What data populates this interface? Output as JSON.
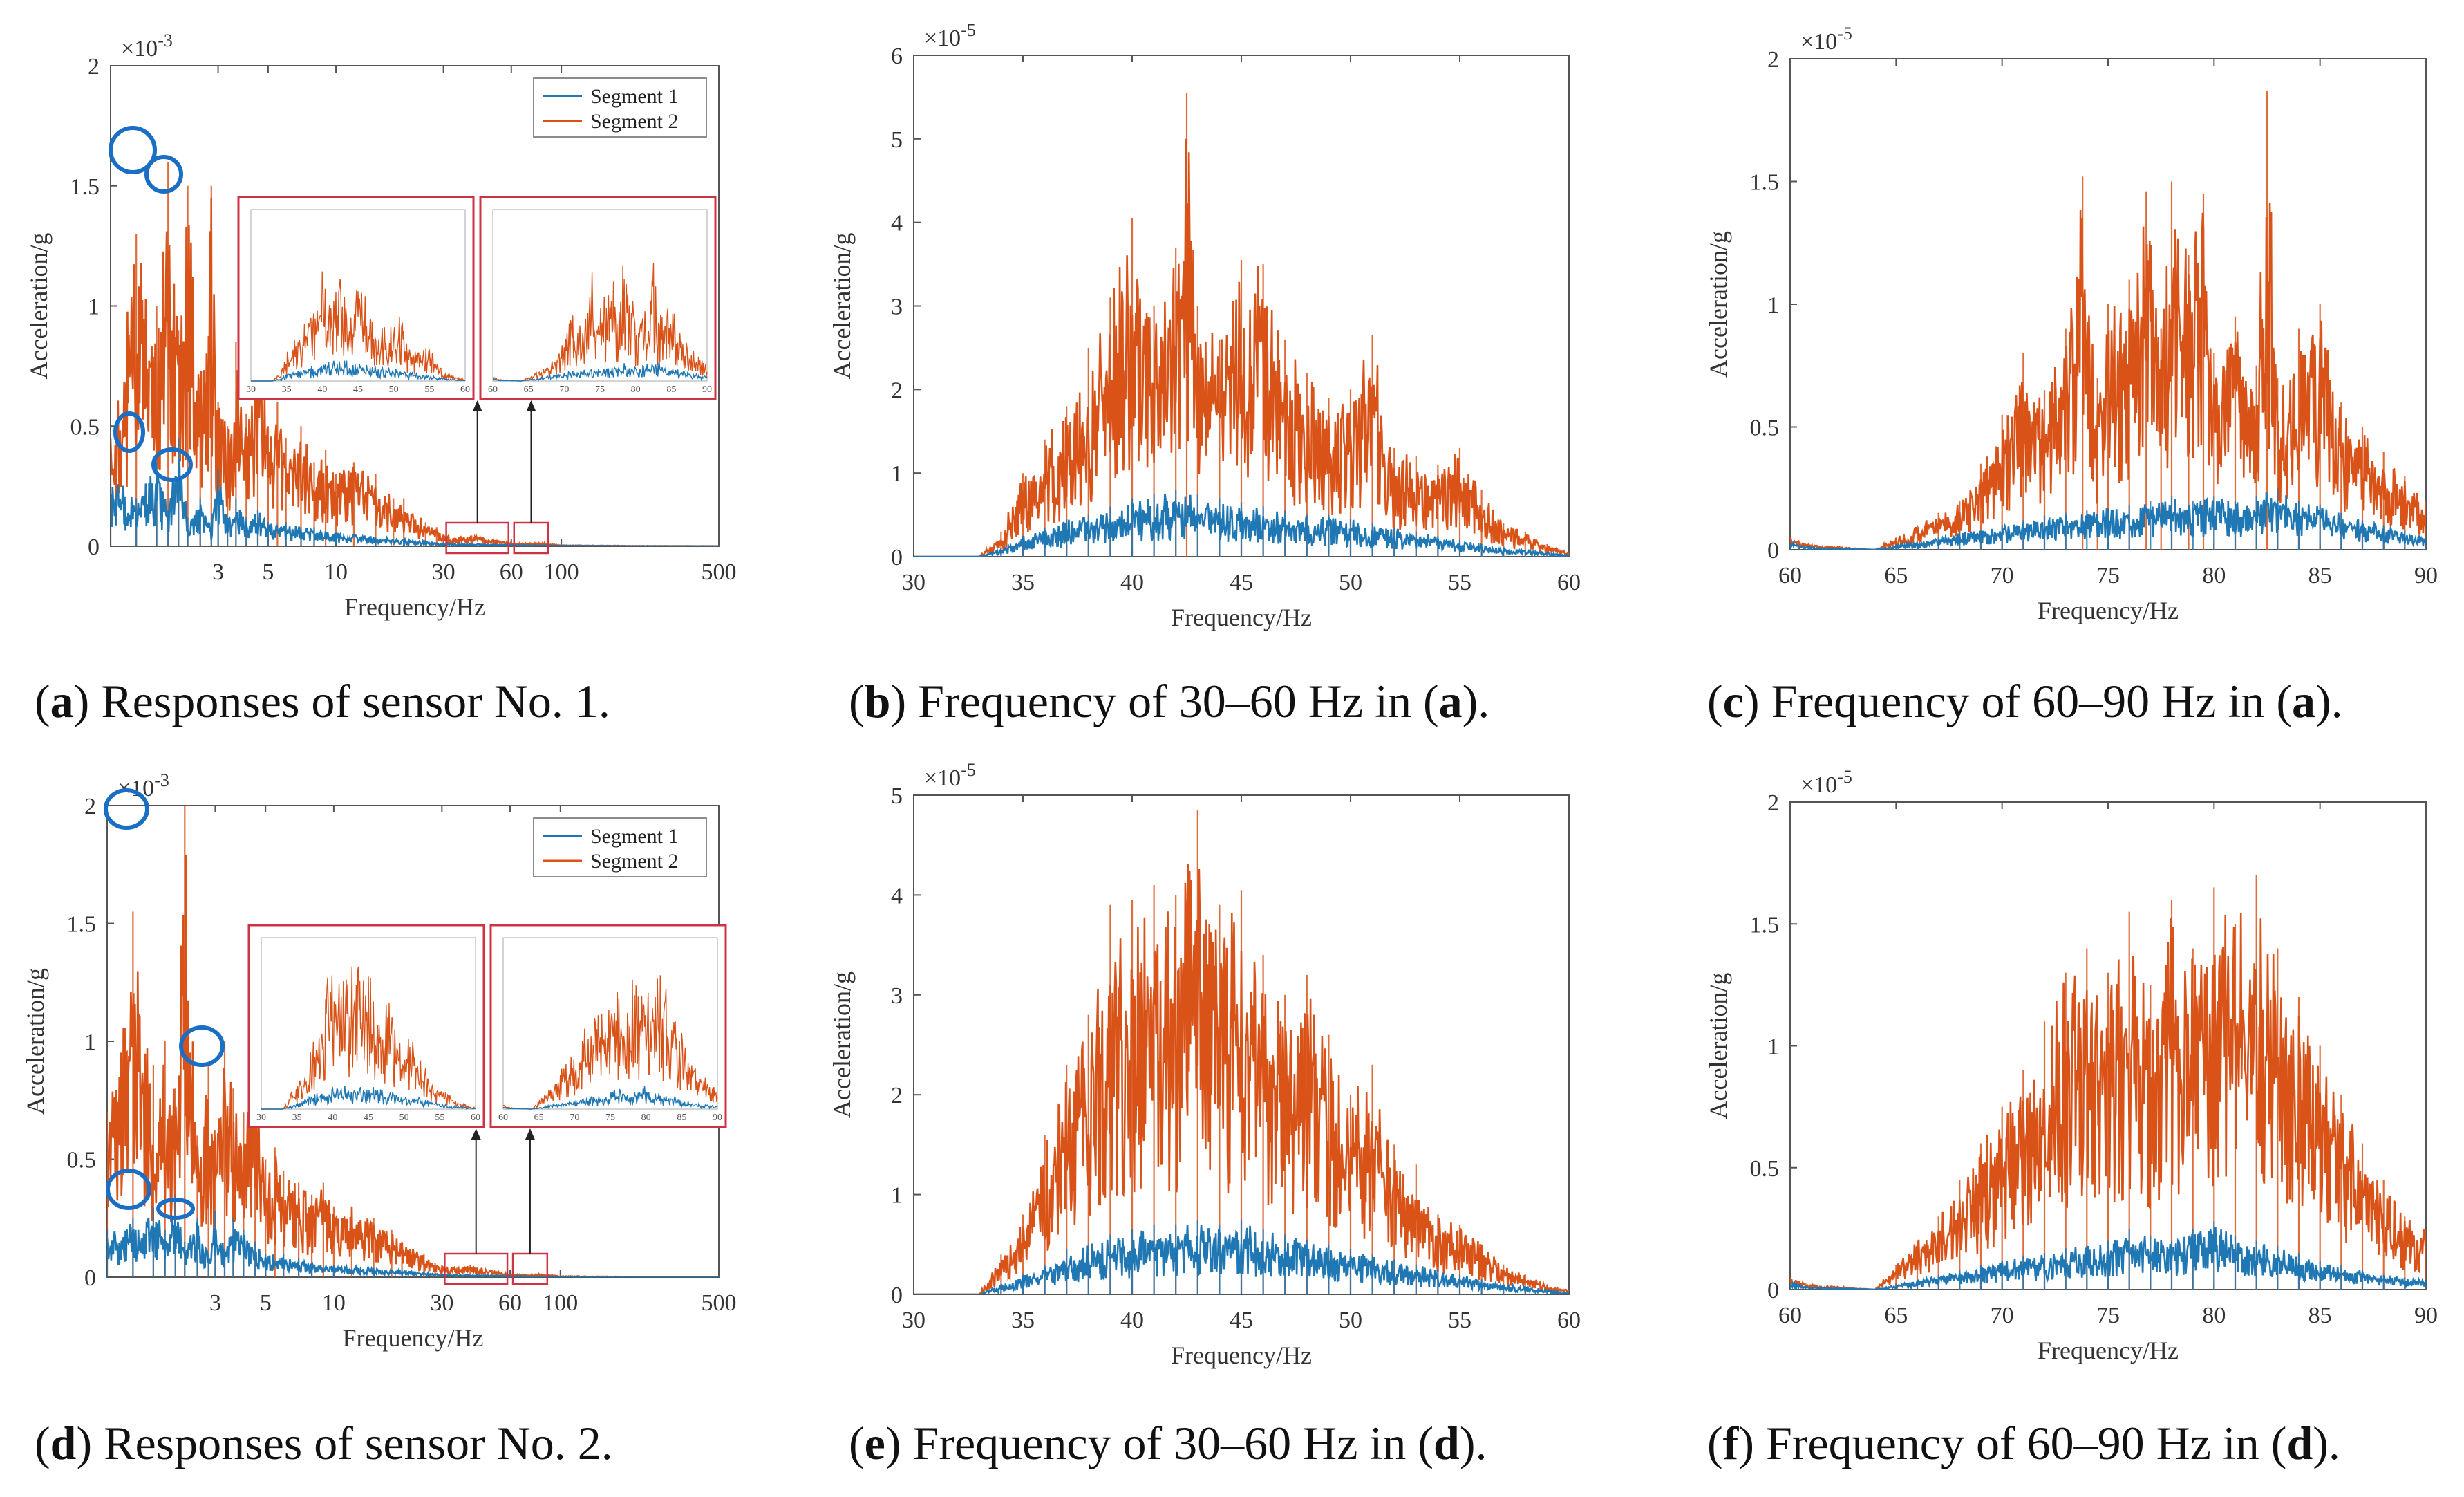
{
  "colors": {
    "segment1": "#1f77b4",
    "segment2": "#d95319",
    "inset_frame": "#cc3344",
    "marker": "#1a6fc4"
  },
  "captions": [
    {
      "letter": "a",
      "text": "Responses of sensor No. 1."
    },
    {
      "letter": "b",
      "pre": "Frequency of 30–60 Hz in (",
      "ref": "a",
      "post": ")."
    },
    {
      "letter": "c",
      "pre": "Frequency of 60–90 Hz in (",
      "ref": "a",
      "post": ")."
    },
    {
      "letter": "d",
      "text": "Responses of sensor No. 2."
    },
    {
      "letter": "e",
      "pre": "Frequency of 30–60 Hz in (",
      "ref": "d",
      "post": ")."
    },
    {
      "letter": "f",
      "pre": "Frequency of 60–90 Hz in (",
      "ref": "d",
      "post": ")."
    }
  ],
  "chart_data": [
    {
      "id": "a",
      "type": "line",
      "xscale": "log",
      "xlabel": "Frequency/Hz",
      "ylabel": "Acceleration/g",
      "xlim": [
        1,
        500
      ],
      "ylim": [
        0,
        2
      ],
      "y_exponent": "×10-3",
      "xticks": [
        3,
        5,
        10,
        30,
        60,
        100,
        500
      ],
      "yticks": [
        0,
        0.5,
        1,
        1.5,
        2
      ],
      "legend": [
        "Segment 1",
        "Segment 2"
      ],
      "legend_position": "top-right",
      "highlight_ranges": [
        [
          30,
          60
        ],
        [
          60,
          90
        ]
      ],
      "series": [
        {
          "name": "Segment 2",
          "x": [
            1,
            1.3,
            1.6,
            1.8,
            2.0,
            2.2,
            2.5,
            2.8,
            3.0,
            3.3,
            3.6,
            4.0,
            4.5,
            5.0,
            5.5,
            6,
            7,
            8,
            9,
            10,
            12,
            15,
            18,
            20,
            25,
            28,
            30,
            35,
            40,
            45,
            50,
            60,
            70,
            80,
            90,
            100,
            200,
            500
          ],
          "y": [
            0.45,
            1.3,
            1.0,
            1.6,
            0.9,
            1.5,
            0.7,
            1.5,
            0.6,
            0.5,
            0.85,
            0.55,
            0.9,
            0.5,
            0.6,
            0.45,
            0.5,
            0.35,
            0.4,
            0.3,
            0.35,
            0.3,
            0.2,
            0.2,
            0.1,
            0.08,
            0.05,
            0.04,
            0.045,
            0.04,
            0.03,
            0.015,
            0.012,
            0.015,
            0.01,
            0.005,
            0.002,
            0.001
          ]
        },
        {
          "name": "Segment 1",
          "x": [
            1,
            1.3,
            1.6,
            1.8,
            2.0,
            2.2,
            2.5,
            2.8,
            3.0,
            3.3,
            3.6,
            4.0,
            4.5,
            5.0,
            6,
            7,
            8,
            10,
            15,
            20,
            30,
            40,
            50,
            60,
            80,
            100,
            200,
            500
          ],
          "y": [
            0.3,
            0.2,
            0.35,
            0.15,
            0.45,
            0.12,
            0.2,
            0.1,
            0.32,
            0.12,
            0.2,
            0.12,
            0.15,
            0.1,
            0.1,
            0.08,
            0.08,
            0.06,
            0.04,
            0.03,
            0.012,
            0.01,
            0.008,
            0.006,
            0.004,
            0.003,
            0.001,
            0.0005
          ]
        }
      ]
    },
    {
      "id": "b",
      "type": "line",
      "xlabel": "Frequency/Hz",
      "ylabel": "Acceleration/g",
      "xlim": [
        30,
        60
      ],
      "ylim": [
        0,
        6
      ],
      "y_exponent": "×10-5",
      "xticks": [
        30,
        35,
        40,
        45,
        50,
        55,
        60
      ],
      "yticks": [
        0,
        1,
        2,
        3,
        4,
        5,
        6
      ],
      "series": [
        {
          "name": "Segment 2",
          "x": [
            30,
            33,
            34,
            35,
            36,
            37,
            38,
            39,
            40,
            41,
            42,
            42.5,
            43,
            44,
            45,
            46,
            47,
            48,
            49,
            50,
            51,
            52,
            53,
            54,
            55,
            56,
            57,
            58,
            59,
            60
          ],
          "y": [
            0,
            0,
            0.3,
            1.0,
            1.4,
            1.8,
            2.5,
            3.1,
            4.05,
            3.0,
            3.7,
            5.55,
            3.0,
            2.6,
            3.55,
            3.5,
            2.6,
            2.2,
            1.9,
            2.0,
            2.65,
            1.3,
            1.2,
            1.1,
            1.3,
            0.8,
            0.4,
            0.3,
            0.15,
            0.05
          ]
        },
        {
          "name": "Segment 1",
          "x": [
            30,
            33,
            34,
            35,
            36,
            37,
            38,
            39,
            40,
            41,
            42,
            43,
            44,
            45,
            46,
            47,
            48,
            49,
            50,
            51,
            52,
            53,
            54,
            55,
            56,
            57,
            58,
            59,
            60
          ],
          "y": [
            0,
            0,
            0.1,
            0.25,
            0.35,
            0.45,
            0.5,
            0.6,
            0.7,
            0.75,
            0.8,
            0.75,
            0.7,
            0.65,
            0.6,
            0.55,
            0.5,
            0.5,
            0.45,
            0.4,
            0.35,
            0.3,
            0.25,
            0.2,
            0.15,
            0.1,
            0.08,
            0.05,
            0.02
          ]
        }
      ]
    },
    {
      "id": "c",
      "type": "line",
      "xlabel": "Frequency/Hz",
      "ylabel": "Acceleration/g",
      "xlim": [
        60,
        90
      ],
      "ylim": [
        0,
        2
      ],
      "y_exponent": "×10-5",
      "xticks": [
        60,
        65,
        70,
        75,
        80,
        85,
        90
      ],
      "yticks": [
        0,
        0.5,
        1,
        1.5,
        2
      ],
      "series": [
        {
          "name": "Segment 2",
          "x": [
            60,
            61,
            64,
            65,
            66,
            67,
            68,
            69,
            70,
            71,
            72,
            73,
            73.8,
            74.5,
            75,
            76,
            76.8,
            77.5,
            78,
            78.8,
            79.5,
            80,
            81,
            82,
            82.5,
            83,
            84,
            85,
            86,
            87,
            88,
            89,
            90
          ],
          "y": [
            0.05,
            0.02,
            0,
            0.05,
            0.1,
            0.15,
            0.2,
            0.35,
            0.55,
            0.8,
            0.65,
            0.9,
            1.52,
            0.7,
            1.0,
            1.1,
            1.46,
            0.9,
            1.5,
            1.2,
            1.45,
            0.8,
            0.95,
            0.75,
            1.87,
            0.7,
            0.9,
            1.0,
            0.6,
            0.5,
            0.4,
            0.3,
            0.2
          ]
        },
        {
          "name": "Segment 1",
          "x": [
            60,
            61,
            64,
            65,
            66,
            67,
            68,
            69,
            70,
            71,
            72,
            73,
            74,
            75,
            76,
            77,
            78,
            79,
            80,
            81,
            82,
            83,
            84,
            85,
            86,
            87,
            88,
            89,
            90
          ],
          "y": [
            0.03,
            0.01,
            0,
            0.02,
            0.03,
            0.05,
            0.07,
            0.08,
            0.1,
            0.12,
            0.14,
            0.15,
            0.16,
            0.17,
            0.18,
            0.2,
            0.22,
            0.2,
            0.22,
            0.2,
            0.22,
            0.25,
            0.2,
            0.18,
            0.15,
            0.12,
            0.1,
            0.08,
            0.05
          ]
        }
      ]
    },
    {
      "id": "d",
      "type": "line",
      "xscale": "log",
      "xlabel": "Frequency/Hz",
      "ylabel": "Acceleration/g",
      "xlim": [
        1,
        500
      ],
      "ylim": [
        0,
        2
      ],
      "y_exponent": "×10-3",
      "xticks": [
        3,
        5,
        10,
        30,
        60,
        100,
        500
      ],
      "yticks": [
        0,
        0.5,
        1,
        1.5,
        2
      ],
      "legend": [
        "Segment 1",
        "Segment 2"
      ],
      "legend_position": "top-right",
      "highlight_ranges": [
        [
          30,
          60
        ],
        [
          60,
          90
        ]
      ],
      "series": [
        {
          "name": "Segment 2",
          "x": [
            1,
            1.3,
            1.6,
            1.8,
            2.0,
            2.2,
            2.5,
            2.8,
            3.0,
            3.3,
            3.6,
            4.0,
            4.5,
            5.0,
            5.5,
            6,
            7,
            8,
            9,
            10,
            12,
            15,
            18,
            20,
            25,
            28,
            30,
            35,
            40,
            45,
            50,
            60,
            70,
            80,
            90,
            100,
            200,
            500
          ],
          "y": [
            0.7,
            1.55,
            0.9,
            1.0,
            0.8,
            2.0,
            0.6,
            0.9,
            0.6,
            1.0,
            0.8,
            0.7,
            1.0,
            0.5,
            0.55,
            0.45,
            0.4,
            0.35,
            0.4,
            0.3,
            0.3,
            0.25,
            0.2,
            0.15,
            0.1,
            0.06,
            0.05,
            0.04,
            0.05,
            0.04,
            0.03,
            0.015,
            0.012,
            0.015,
            0.01,
            0.005,
            0.002,
            0.001
          ]
        },
        {
          "name": "Segment 1",
          "x": [
            1,
            1.3,
            1.6,
            1.8,
            2.0,
            2.2,
            2.5,
            2.8,
            3.0,
            3.3,
            3.6,
            4.0,
            4.5,
            5.0,
            6,
            7,
            8,
            10,
            15,
            20,
            30,
            40,
            50,
            60,
            80,
            100,
            200,
            500
          ],
          "y": [
            0.2,
            0.25,
            0.3,
            0.2,
            0.35,
            0.15,
            0.25,
            0.1,
            0.28,
            0.12,
            0.25,
            0.2,
            0.15,
            0.1,
            0.1,
            0.08,
            0.06,
            0.05,
            0.04,
            0.03,
            0.012,
            0.01,
            0.008,
            0.006,
            0.004,
            0.003,
            0.001,
            0.0005
          ]
        }
      ]
    },
    {
      "id": "e",
      "type": "line",
      "xlabel": "Frequency/Hz",
      "ylabel": "Acceleration/g",
      "xlim": [
        30,
        60
      ],
      "ylim": [
        0,
        5
      ],
      "y_exponent": "×10-5",
      "xticks": [
        30,
        35,
        40,
        45,
        50,
        55,
        60
      ],
      "yticks": [
        0,
        1,
        2,
        3,
        4,
        5
      ],
      "series": [
        {
          "name": "Segment 2",
          "x": [
            30,
            33,
            34,
            35,
            36,
            37,
            38,
            39,
            40,
            41,
            42,
            43,
            44,
            45,
            46,
            47,
            48,
            49,
            50,
            51,
            52,
            53,
            54,
            55,
            56,
            57,
            58,
            59,
            60
          ],
          "y": [
            0,
            0,
            0.4,
            0.8,
            1.6,
            2.3,
            2.8,
            3.9,
            3.95,
            4.1,
            4.0,
            4.85,
            3.9,
            4.05,
            3.4,
            3.0,
            3.2,
            2.6,
            2.0,
            2.3,
            1.5,
            1.3,
            0.8,
            0.7,
            0.5,
            0.3,
            0.2,
            0.1,
            0.05
          ]
        },
        {
          "name": "Segment 1",
          "x": [
            30,
            33,
            34,
            35,
            36,
            37,
            38,
            39,
            40,
            41,
            42,
            43,
            44,
            45,
            46,
            47,
            48,
            49,
            50,
            51,
            52,
            53,
            54,
            55,
            56,
            57,
            58,
            59,
            60
          ],
          "y": [
            0,
            0,
            0.1,
            0.2,
            0.3,
            0.45,
            0.5,
            0.6,
            0.65,
            0.7,
            0.7,
            0.75,
            0.7,
            0.75,
            0.65,
            0.6,
            0.55,
            0.5,
            0.45,
            0.4,
            0.35,
            0.3,
            0.25,
            0.2,
            0.15,
            0.1,
            0.08,
            0.05,
            0.02
          ]
        }
      ]
    },
    {
      "id": "f",
      "type": "line",
      "xlabel": "Frequency/Hz",
      "ylabel": "Acceleration/g",
      "xlim": [
        60,
        90
      ],
      "ylim": [
        0,
        2
      ],
      "y_exponent": "×10-5",
      "xticks": [
        60,
        65,
        70,
        75,
        80,
        85,
        90
      ],
      "yticks": [
        0,
        0.5,
        1,
        1.5,
        2
      ],
      "series": [
        {
          "name": "Segment 2",
          "x": [
            60,
            61,
            64,
            65,
            66,
            67,
            68,
            69,
            70,
            71,
            72,
            73,
            74,
            75,
            76,
            77,
            78,
            79,
            80,
            81,
            82,
            83,
            84,
            85,
            86,
            87,
            88,
            89,
            90
          ],
          "y": [
            0.05,
            0.02,
            0,
            0.1,
            0.2,
            0.3,
            0.45,
            0.6,
            0.75,
            0.9,
            1.1,
            1.3,
            1.4,
            1.3,
            1.55,
            1.25,
            1.6,
            1.4,
            1.65,
            1.5,
            1.7,
            1.4,
            1.2,
            1.0,
            0.8,
            0.6,
            0.45,
            0.3,
            0.25
          ]
        },
        {
          "name": "Segment 1",
          "x": [
            60,
            61,
            64,
            65,
            66,
            67,
            68,
            69,
            70,
            71,
            72,
            73,
            74,
            75,
            76,
            77,
            78,
            79,
            80,
            81,
            82,
            83,
            84,
            85,
            86,
            87,
            88,
            89,
            90
          ],
          "y": [
            0.03,
            0.01,
            0,
            0.02,
            0.04,
            0.06,
            0.08,
            0.1,
            0.12,
            0.14,
            0.15,
            0.17,
            0.18,
            0.2,
            0.25,
            0.22,
            0.2,
            0.25,
            0.28,
            0.22,
            0.2,
            0.18,
            0.15,
            0.12,
            0.1,
            0.08,
            0.06,
            0.05,
            0.04
          ]
        }
      ]
    }
  ]
}
